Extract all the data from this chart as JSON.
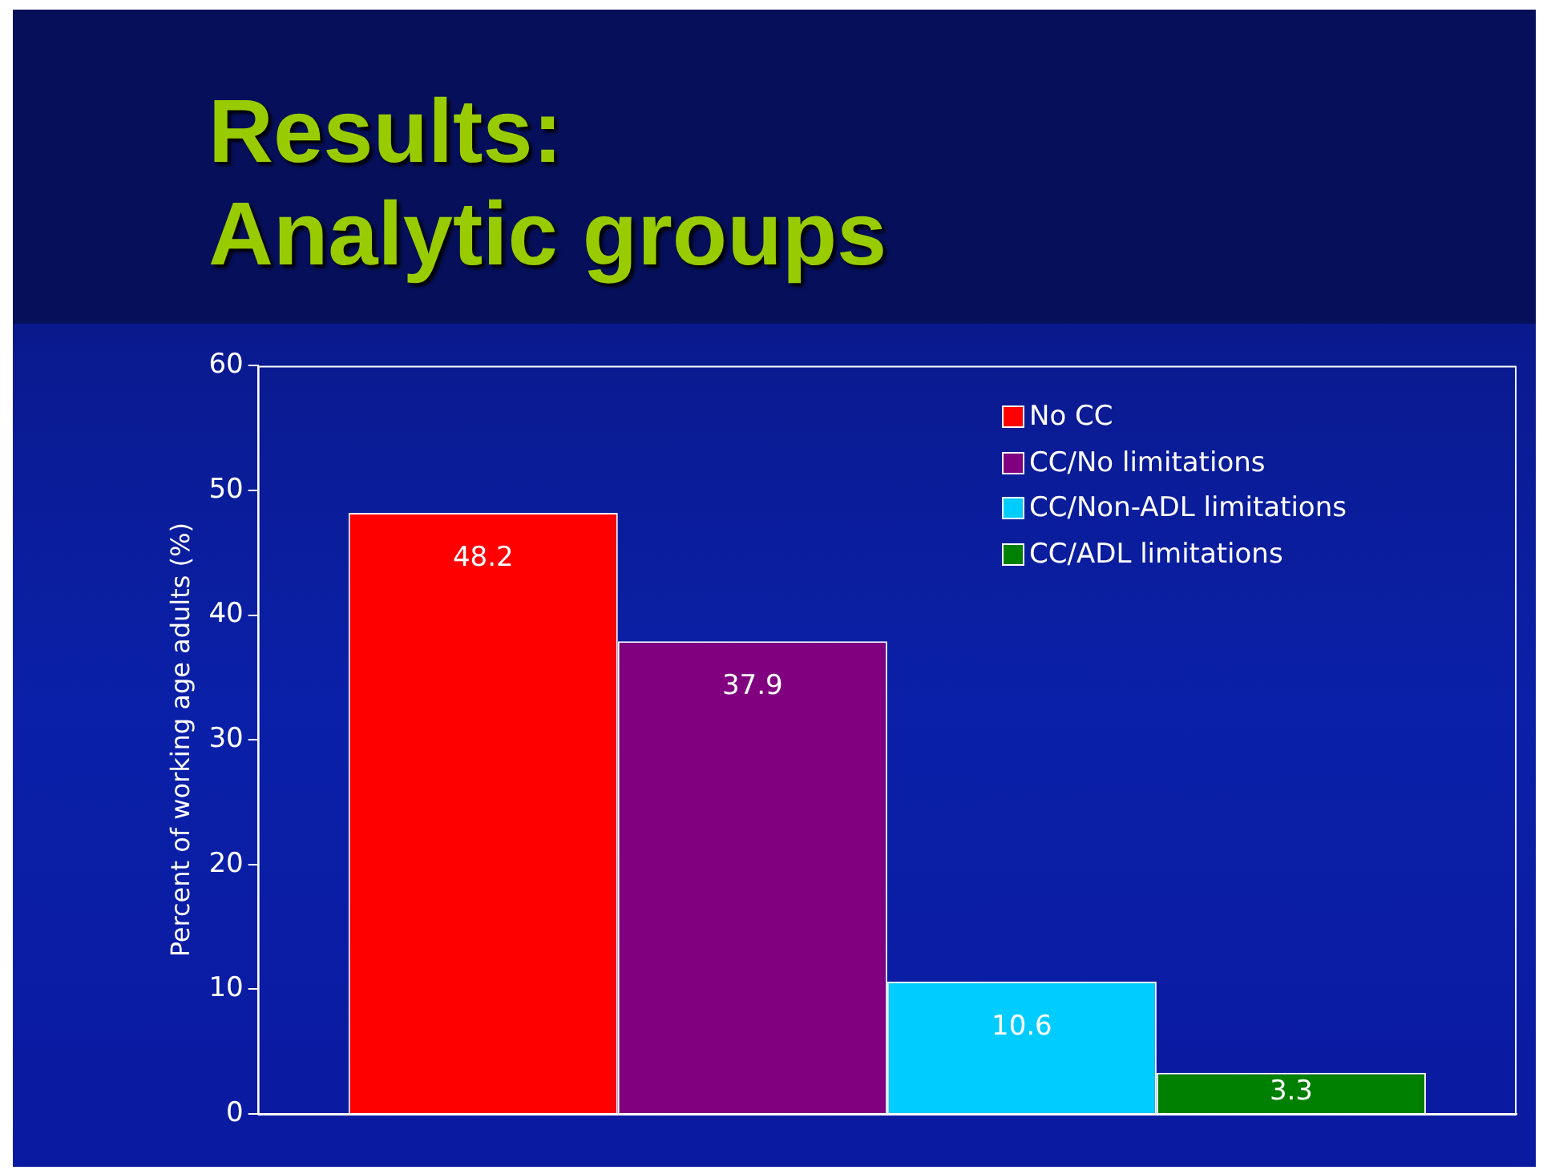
{
  "chart_data": {
    "type": "bar",
    "title": "Results:\nAnalytic groups",
    "ylabel": "Percent of working age adults (%)",
    "categories": [
      null
    ],
    "series": [
      {
        "name": "No CC",
        "color": "#ff0000",
        "values": [
          48.2
        ]
      },
      {
        "name": "CC/No limitations",
        "color": "#800080",
        "values": [
          37.9
        ]
      },
      {
        "name": "CC/Non-ADL limitations",
        "color": "#00ccff",
        "values": [
          10.6
        ]
      },
      {
        "name": "CC/ADL limitations",
        "color": "#008000",
        "values": [
          3.3
        ]
      }
    ],
    "ylim": [
      0,
      60
    ],
    "yticks": [
      0,
      10,
      20,
      30,
      40,
      50,
      60
    ],
    "grid": false,
    "legend": "top right",
    "data_labels": true,
    "tick_labels": "y"
  }
}
